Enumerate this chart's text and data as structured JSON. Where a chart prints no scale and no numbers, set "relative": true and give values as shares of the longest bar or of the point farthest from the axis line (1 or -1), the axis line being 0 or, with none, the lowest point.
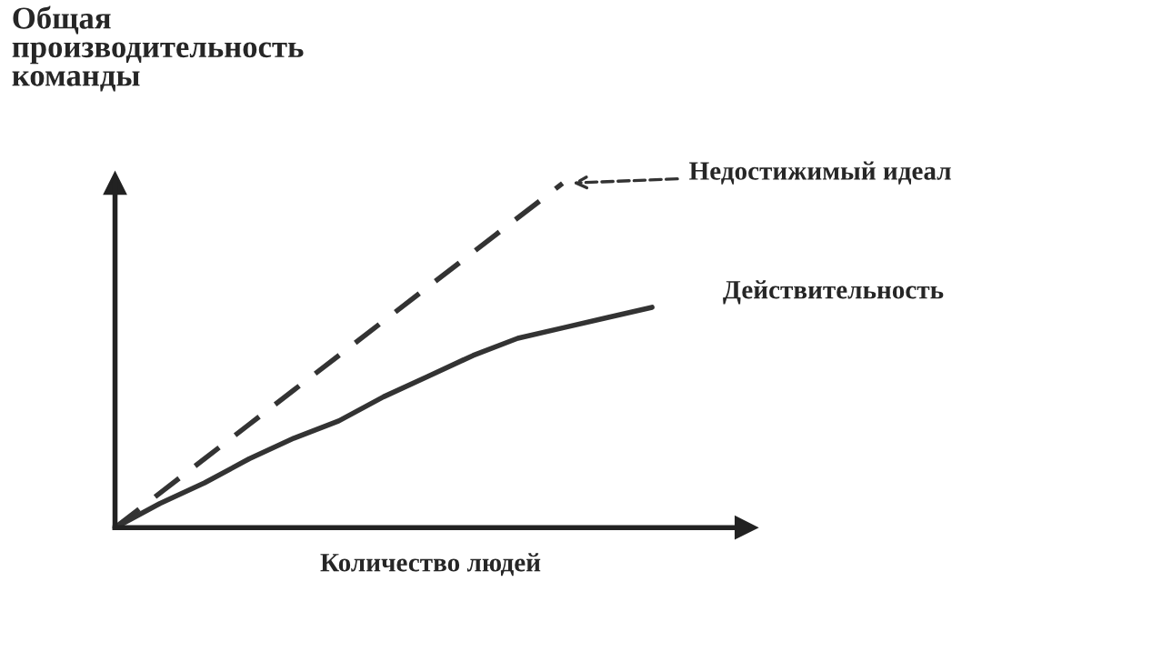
{
  "chart_data": {
    "type": "line",
    "relative": true,
    "title": "Общая\nпроизводительность\nкоманды",
    "xlabel": "Количество людей",
    "categories": [
      null,
      null,
      null,
      null,
      null,
      null,
      null,
      null,
      null,
      null,
      null,
      null,
      null
    ],
    "series": [
      {
        "name": "Недостижимый идеал",
        "color": "#333333",
        "line_style": "dashed",
        "values": [
          0,
          0.1,
          0.2,
          0.3,
          0.4,
          0.5,
          0.6,
          0.7,
          0.8,
          0.9,
          1,
          null,
          null
        ]
      },
      {
        "name": "Действительность",
        "color": "#333333",
        "line_style": "solid",
        "values": [
          0,
          0.07,
          0.13,
          0.2,
          0.26,
          0.31,
          0.38,
          0.44,
          0.5,
          0.55,
          0.58,
          0.61,
          0.64
        ]
      }
    ]
  }
}
